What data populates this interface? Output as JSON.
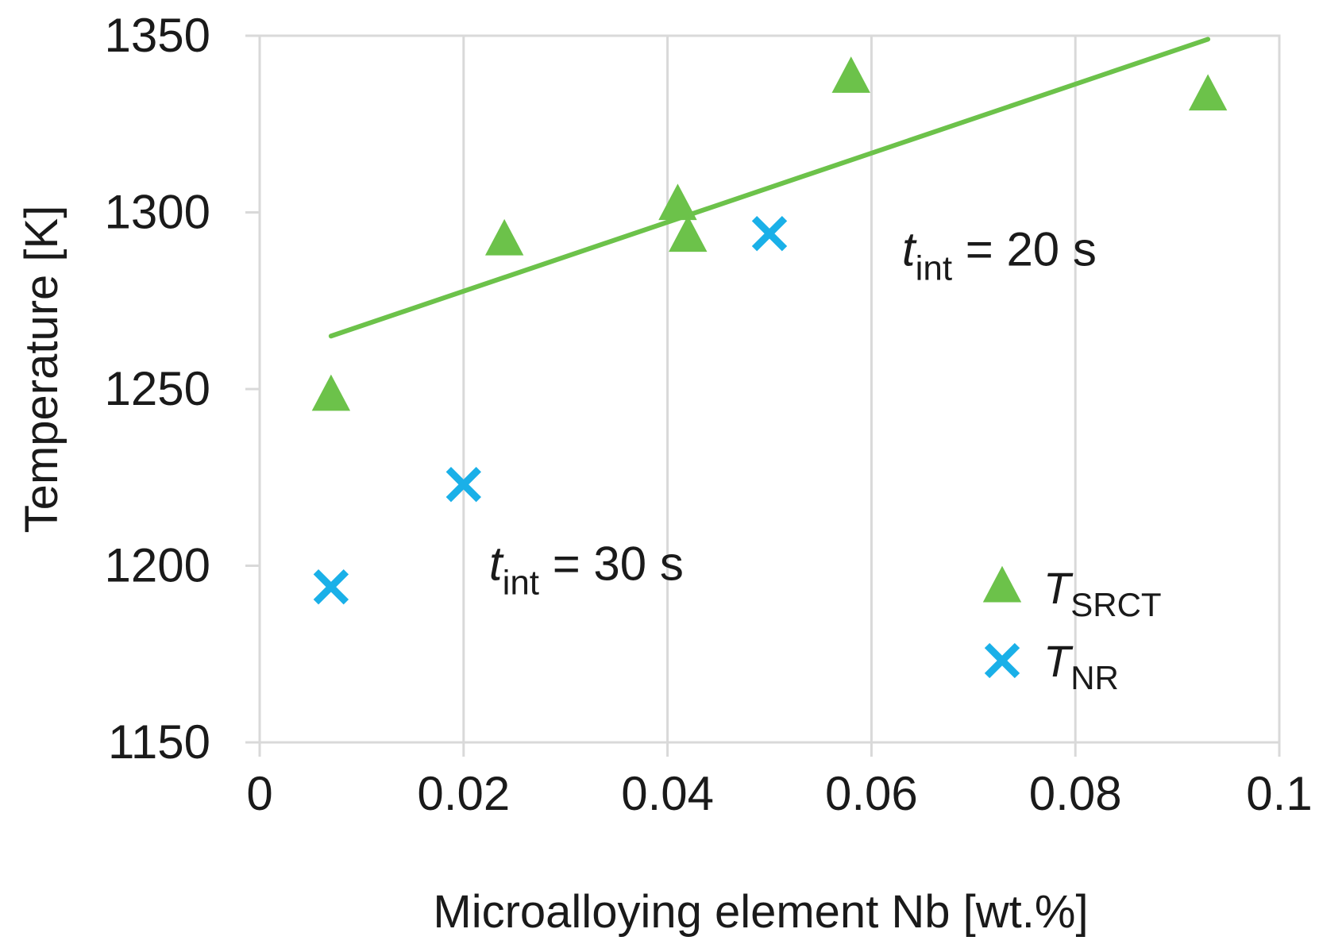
{
  "chart_data": {
    "type": "scatter",
    "title": "",
    "xlabel": "Microalloying element Nb [wt.%]",
    "ylabel": "Temperature [K]",
    "xlim": [
      0,
      0.1
    ],
    "ylim": [
      1150,
      1350
    ],
    "x_ticks": [
      0,
      0.02,
      0.04,
      0.06,
      0.08,
      0.1
    ],
    "x_tick_labels": [
      "0",
      "0.02",
      "0.04",
      "0.06",
      "0.08",
      "0.1"
    ],
    "y_ticks": [
      1150,
      1200,
      1250,
      1300,
      1350
    ],
    "y_tick_labels": [
      "1150",
      "1200",
      "1250",
      "1300",
      "1350"
    ],
    "grid": "vertical",
    "legend_position": "bottom-right",
    "series": [
      {
        "name": "T_SRCT",
        "legend_main": "T",
        "legend_sub": "SRCT",
        "marker": "triangle",
        "color": "#6cc24a",
        "x": [
          0.007,
          0.024,
          0.041,
          0.042,
          0.058,
          0.093
        ],
        "y": [
          1248,
          1292,
          1302,
          1293,
          1338,
          1333
        ]
      },
      {
        "name": "T_NR",
        "legend_main": "T",
        "legend_sub": "NR",
        "marker": "x",
        "color": "#1ab0e8",
        "x": [
          0.007,
          0.02,
          0.05
        ],
        "y": [
          1194,
          1223,
          1294
        ]
      }
    ],
    "trendline": {
      "series": "T_SRCT",
      "color": "#6cc24a",
      "x": [
        0.007,
        0.093
      ],
      "y": [
        1265,
        1349
      ]
    },
    "annotations": [
      {
        "id": "a20",
        "main": "t",
        "sub": "int",
        "rest": " = 20 s",
        "x": 0.063,
        "y": 1285
      },
      {
        "id": "a30",
        "main": "t",
        "sub": "int",
        "rest": " = 30 s",
        "x": 0.0225,
        "y": 1196
      }
    ]
  }
}
